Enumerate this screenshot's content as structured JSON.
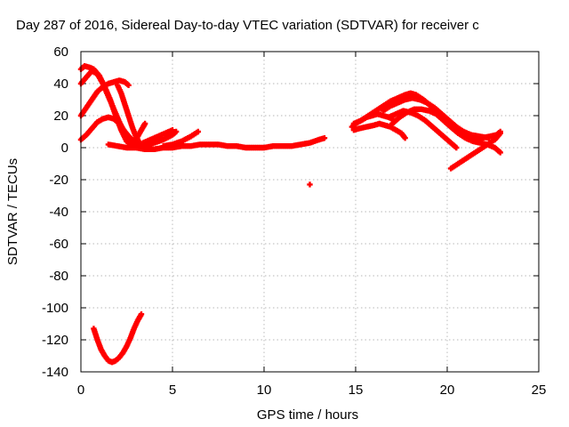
{
  "chart_data": {
    "type": "scatter",
    "title": "Day 287 of 2016, Sidereal Day-to-day VTEC variation (SDTVAR) for receiver c",
    "xlabel": "GPS time / hours",
    "ylabel": "SDTVAR / TECUs",
    "xlim": [
      0,
      25
    ],
    "ylim": [
      -140,
      60
    ],
    "xticks": [
      0,
      5,
      10,
      15,
      20,
      25
    ],
    "yticks": [
      60,
      40,
      20,
      0,
      -20,
      -40,
      -60,
      -80,
      -100,
      -120,
      -140
    ],
    "grid": true,
    "marker": "plus",
    "color": "#ff0000",
    "segments": [
      [
        [
          0.0,
          49
        ],
        [
          0.2,
          51
        ],
        [
          0.5,
          50
        ],
        [
          0.7,
          49
        ],
        [
          1.0,
          45
        ],
        [
          1.3,
          38
        ],
        [
          1.6,
          30
        ],
        [
          1.9,
          20
        ],
        [
          2.2,
          11
        ],
        [
          2.5,
          4
        ],
        [
          2.8,
          1
        ]
      ],
      [
        [
          0.0,
          40
        ],
        [
          0.3,
          44
        ],
        [
          0.6,
          48
        ],
        [
          0.9,
          46
        ],
        [
          1.2,
          40
        ],
        [
          1.5,
          32
        ],
        [
          1.8,
          24
        ],
        [
          2.1,
          16
        ],
        [
          2.4,
          9
        ],
        [
          2.7,
          3
        ]
      ],
      [
        [
          0.0,
          20
        ],
        [
          0.3,
          25
        ],
        [
          0.6,
          30
        ],
        [
          0.9,
          35
        ],
        [
          1.2,
          38
        ],
        [
          1.5,
          40
        ],
        [
          1.8,
          41
        ],
        [
          2.1,
          42
        ],
        [
          2.4,
          41
        ],
        [
          2.6,
          39
        ]
      ],
      [
        [
          2.0,
          39
        ],
        [
          2.2,
          34
        ],
        [
          2.4,
          27
        ],
        [
          2.6,
          20
        ],
        [
          2.8,
          13
        ],
        [
          3.0,
          7
        ],
        [
          3.2,
          3
        ],
        [
          3.4,
          1
        ]
      ],
      [
        [
          0.0,
          5
        ],
        [
          0.3,
          8
        ],
        [
          0.6,
          12
        ],
        [
          0.9,
          16
        ],
        [
          1.2,
          18
        ],
        [
          1.5,
          19
        ],
        [
          1.8,
          18
        ],
        [
          2.1,
          15
        ],
        [
          2.4,
          10
        ],
        [
          2.7,
          6
        ],
        [
          3.0,
          3
        ],
        [
          3.3,
          2
        ]
      ],
      [
        [
          1.5,
          2
        ],
        [
          2.0,
          1
        ],
        [
          2.5,
          0
        ],
        [
          3.0,
          0
        ],
        [
          3.5,
          -1
        ],
        [
          4.0,
          -1
        ],
        [
          4.5,
          0
        ],
        [
          5.0,
          0
        ],
        [
          5.5,
          1
        ],
        [
          6.0,
          1
        ],
        [
          6.5,
          2
        ],
        [
          7.0,
          2
        ],
        [
          7.5,
          2
        ],
        [
          8.0,
          1
        ],
        [
          8.5,
          1
        ],
        [
          9.0,
          0
        ],
        [
          9.5,
          0
        ],
        [
          10.0,
          0
        ],
        [
          10.5,
          1
        ],
        [
          11.0,
          1
        ],
        [
          11.5,
          1
        ],
        [
          12.0,
          2
        ],
        [
          12.5,
          3
        ],
        [
          13.0,
          5
        ],
        [
          13.3,
          6
        ]
      ],
      [
        [
          2.8,
          2
        ],
        [
          3.0,
          5
        ],
        [
          3.2,
          9
        ],
        [
          3.4,
          13
        ],
        [
          3.5,
          15
        ]
      ],
      [
        [
          3.4,
          3
        ],
        [
          3.8,
          5
        ],
        [
          4.2,
          7
        ],
        [
          4.6,
          9
        ],
        [
          5.0,
          11
        ]
      ],
      [
        [
          4.5,
          1
        ],
        [
          5.0,
          2
        ],
        [
          5.5,
          4
        ],
        [
          6.0,
          7
        ],
        [
          6.4,
          10
        ]
      ],
      [
        [
          3.5,
          1
        ],
        [
          4.0,
          3
        ],
        [
          4.5,
          5
        ],
        [
          5.0,
          8
        ],
        [
          5.2,
          10
        ]
      ],
      [
        [
          0.7,
          -113
        ],
        [
          0.9,
          -120
        ],
        [
          1.1,
          -126
        ],
        [
          1.3,
          -130
        ],
        [
          1.5,
          -133
        ],
        [
          1.7,
          -134
        ],
        [
          1.9,
          -133
        ],
        [
          2.1,
          -131
        ],
        [
          2.3,
          -128
        ],
        [
          2.5,
          -124
        ],
        [
          2.7,
          -119
        ],
        [
          2.9,
          -113
        ],
        [
          3.1,
          -108
        ],
        [
          3.3,
          -104
        ]
      ],
      [
        [
          12.5,
          -23
        ]
      ],
      [
        [
          14.8,
          13
        ],
        [
          15.0,
          15
        ],
        [
          15.3,
          17
        ],
        [
          15.6,
          19
        ],
        [
          15.9,
          20
        ],
        [
          16.2,
          21
        ],
        [
          16.5,
          20
        ],
        [
          16.8,
          19
        ],
        [
          17.0,
          18
        ]
      ],
      [
        [
          14.9,
          11
        ],
        [
          15.2,
          12
        ],
        [
          15.6,
          13
        ],
        [
          16.0,
          14
        ],
        [
          16.3,
          15
        ],
        [
          16.6,
          14
        ],
        [
          16.9,
          13
        ],
        [
          17.2,
          11
        ],
        [
          17.5,
          9
        ],
        [
          17.7,
          6
        ]
      ],
      [
        [
          14.9,
          15
        ],
        [
          15.3,
          17
        ],
        [
          15.7,
          20
        ],
        [
          16.1,
          23
        ],
        [
          16.5,
          26
        ],
        [
          16.9,
          29
        ],
        [
          17.3,
          31
        ],
        [
          17.7,
          33
        ],
        [
          18.0,
          34
        ],
        [
          18.3,
          33
        ],
        [
          18.7,
          30
        ],
        [
          19.1,
          26
        ],
        [
          19.5,
          21
        ],
        [
          19.9,
          16
        ],
        [
          20.3,
          12
        ],
        [
          20.7,
          9
        ],
        [
          21.1,
          8
        ],
        [
          21.5,
          7
        ]
      ],
      [
        [
          16.5,
          23
        ],
        [
          16.9,
          26
        ],
        [
          17.3,
          28
        ],
        [
          17.7,
          30
        ],
        [
          18.1,
          31
        ],
        [
          18.5,
          30
        ],
        [
          18.9,
          28
        ],
        [
          19.3,
          25
        ],
        [
          19.7,
          21
        ],
        [
          20.1,
          17
        ],
        [
          20.5,
          13
        ],
        [
          20.9,
          10
        ],
        [
          21.3,
          8
        ],
        [
          21.8,
          7
        ],
        [
          22.3,
          6
        ]
      ],
      [
        [
          17.0,
          15
        ],
        [
          17.4,
          19
        ],
        [
          17.8,
          22
        ],
        [
          18.2,
          24
        ],
        [
          18.6,
          24
        ],
        [
          19.0,
          23
        ],
        [
          19.4,
          21
        ],
        [
          19.8,
          17
        ],
        [
          20.2,
          13
        ],
        [
          20.6,
          9
        ],
        [
          21.0,
          6
        ],
        [
          21.4,
          4
        ],
        [
          21.8,
          3
        ],
        [
          22.2,
          2
        ],
        [
          22.6,
          0
        ],
        [
          22.9,
          -3
        ]
      ],
      [
        [
          16.8,
          19
        ],
        [
          17.2,
          21
        ],
        [
          17.6,
          23
        ],
        [
          18.0,
          22
        ],
        [
          18.4,
          20
        ],
        [
          18.8,
          17
        ],
        [
          19.2,
          13
        ],
        [
          19.6,
          9
        ],
        [
          20.0,
          5
        ],
        [
          20.3,
          2
        ],
        [
          20.5,
          0
        ]
      ],
      [
        [
          20.2,
          -13
        ],
        [
          20.6,
          -10
        ],
        [
          21.0,
          -7
        ],
        [
          21.4,
          -4
        ],
        [
          21.8,
          -1
        ],
        [
          22.2,
          2
        ],
        [
          22.6,
          5
        ],
        [
          22.9,
          9
        ]
      ],
      [
        [
          21.5,
          4
        ],
        [
          21.9,
          6
        ],
        [
          22.3,
          7
        ],
        [
          22.7,
          8
        ],
        [
          22.9,
          10
        ]
      ]
    ]
  }
}
